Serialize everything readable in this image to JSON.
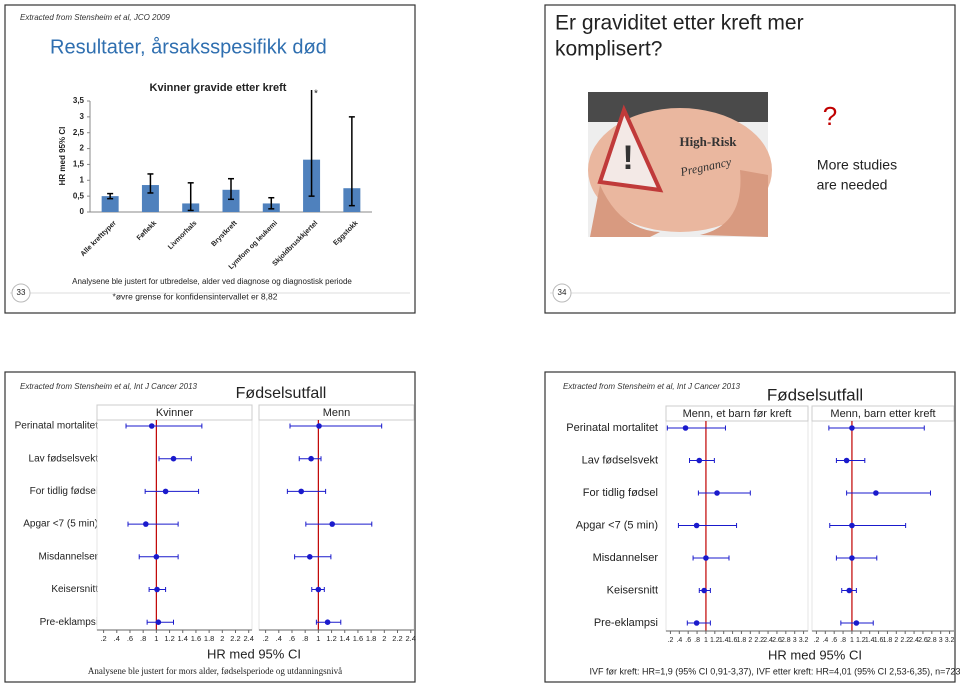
{
  "slides": [
    {
      "source": "Extracted from Stensheim et al, JCO 2009",
      "title": "Resultater, årsaksspesifikk død",
      "notes": [
        "Analysene ble justert for utbredelse, alder ved diagnose og diagnostisk periode",
        "*øvre grense for konfidensintervallet er 8,82"
      ],
      "page": "33"
    },
    {
      "title_lines": [
        "Er graviditet etter kreft mer",
        "komplisert?"
      ],
      "image_text": [
        "High-Risk",
        "Pregnancy"
      ],
      "mark": "?",
      "text_lines": [
        "More studies",
        "are needed"
      ],
      "page": "34"
    },
    {
      "source": "Extracted from Stensheim et al, Int J Cancer 2013"
    },
    {
      "source": "Extracted from Stensheim et al, Int J Cancer 2013"
    }
  ],
  "chart_data": [
    {
      "type": "bar",
      "title": "Kvinner gravide etter kreft",
      "ylabel": "HR med 95% CI",
      "annotation": "*",
      "categories": [
        "Alle krefttyper",
        "Føflekk",
        "Livmorhals",
        "Brystkreft",
        "Lymfom og leukemi",
        "Skjoldbruskkjertel",
        "Eggstokk"
      ],
      "values": [
        0.5,
        0.85,
        0.27,
        0.7,
        0.27,
        1.65,
        0.75
      ],
      "lower": [
        0.42,
        0.6,
        0.05,
        0.4,
        0.1,
        0.5,
        0.2
      ],
      "upper": [
        0.58,
        1.2,
        0.92,
        1.05,
        0.45,
        8.82,
        3.0
      ],
      "color": "#4f81bd",
      "ylim": [
        0,
        3.5
      ],
      "yticks": [
        0,
        {
          "value": 0.5,
          "label": "0,5"
        },
        1,
        {
          "value": 1.5,
          "label": "1,5"
        },
        2,
        {
          "value": 2.5,
          "label": "2,5"
        },
        3,
        {
          "value": 3.5,
          "label": "3,5"
        }
      ]
    },
    {
      "type": "forest",
      "title": "Fødselsutfall",
      "xlabel": "HR med 95% CI",
      "footnote": "Analysene ble justert for mors alder, fødselsperiode og utdanningsnivå",
      "categories": [
        "Perinatal mortalitet",
        "Lav fødselsvekt",
        "For tidlig fødsel",
        "Apgar <7 (5 min)",
        "Misdannelser",
        "Keisersnitt",
        "Pre-eklampsi"
      ],
      "series": [
        {
          "name": "Kvinner",
          "color": "#1a1acc",
          "values": [
            0.93,
            1.26,
            1.14,
            0.84,
            1.0,
            1.01,
            1.03
          ],
          "lower": [
            0.54,
            1.04,
            0.83,
            0.57,
            0.74,
            0.89,
            0.86
          ],
          "upper": [
            1.69,
            1.53,
            1.64,
            1.33,
            1.33,
            1.14,
            1.26
          ]
        },
        {
          "name": "Menn",
          "color": "#1a1acc",
          "values": [
            1.01,
            0.89,
            0.74,
            1.21,
            0.87,
            1.0,
            1.14
          ],
          "lower": [
            0.57,
            0.71,
            0.53,
            0.81,
            0.64,
            0.9,
            0.97
          ],
          "upper": [
            1.96,
            1.04,
            1.11,
            1.81,
            1.19,
            1.09,
            1.34
          ]
        }
      ],
      "reference_line": 1,
      "reference_color": "#c00000",
      "xlim": [
        0.1,
        2.45
      ],
      "xticks": [
        {
          "value": 0.2,
          "label": ".2"
        },
        {
          "value": 0.4,
          "label": ".4"
        },
        {
          "value": 0.6,
          "label": ".6"
        },
        {
          "value": 0.8,
          "label": ".8"
        },
        1,
        1.2,
        1.4,
        1.6,
        1.8,
        2,
        2.2,
        2.4
      ]
    },
    {
      "type": "forest",
      "title": "Fødselsutfall",
      "xlabel": "HR med 95% CI",
      "footnote": "IVF før kreft: HR=1,9 (95% CI 0,91-3,37), IVF etter kreft: HR=4,01 (95% CI 2,53-6,35), n=723",
      "categories": [
        "Perinatal mortalitet",
        "Lav fødselsvekt",
        "For tidlig fødsel",
        "Apgar <7 (5 min)",
        "Misdannelser",
        "Keisersnitt",
        "Pre-eklampsi"
      ],
      "series": [
        {
          "name": "Menn, et barn før kreft",
          "color": "#1a1acc",
          "values": [
            0.54,
            0.85,
            1.25,
            0.79,
            1.0,
            0.96,
            0.79
          ],
          "lower": [
            0.13,
            0.63,
            0.83,
            0.38,
            0.71,
            0.85,
            0.58
          ],
          "upper": [
            1.44,
            1.19,
            2.0,
            1.69,
            1.52,
            1.1,
            1.1
          ]
        },
        {
          "name": "Menn, barn etter kreft",
          "color": "#1a1acc",
          "values": [
            1.0,
            0.88,
            1.54,
            1.0,
            1.0,
            0.94,
            1.1
          ],
          "lower": [
            0.48,
            0.65,
            0.88,
            0.5,
            0.65,
            0.77,
            0.75
          ],
          "upper": [
            2.63,
            1.29,
            2.77,
            2.21,
            1.56,
            1.1,
            1.48
          ]
        }
      ],
      "reference_line": 1,
      "reference_color": "#c00000",
      "xlim": [
        0.1,
        3.3
      ],
      "xticks": [
        {
          "value": 0.2,
          "label": ".2"
        },
        {
          "value": 0.4,
          "label": ".4"
        },
        {
          "value": 0.6,
          "label": ".6"
        },
        {
          "value": 0.8,
          "label": ".8"
        },
        1,
        1.2,
        1.4,
        1.6,
        1.8,
        2,
        2.2,
        2.4,
        2.6,
        2.8,
        3,
        3.2
      ]
    }
  ]
}
